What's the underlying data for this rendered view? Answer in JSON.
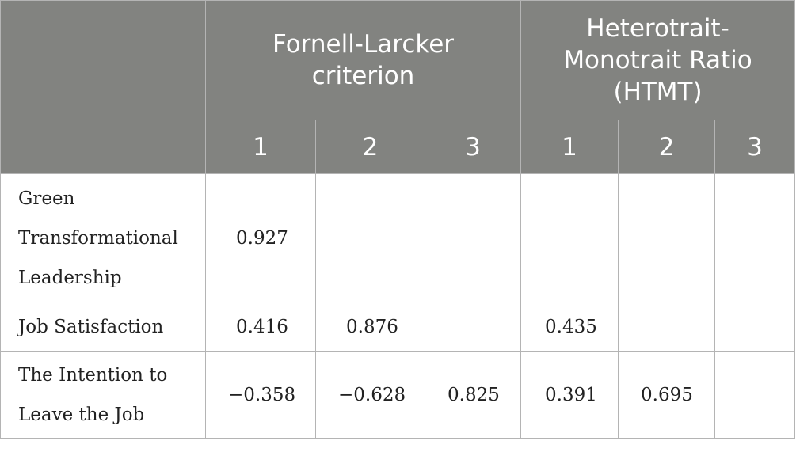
{
  "table": {
    "group_headers": [
      "",
      "Fornell-Larcker criterion",
      "Heterotrait-Monotrait Ratio (HTMT)"
    ],
    "sub_headers": [
      "",
      "1",
      "2",
      "3",
      "1",
      "2",
      "3"
    ],
    "rows": [
      {
        "label": "Green Transformational Leadership",
        "cells": [
          "0.927",
          "",
          "",
          "",
          "",
          ""
        ]
      },
      {
        "label": "Job Satisfaction",
        "cells": [
          "0.416",
          "0.876",
          "",
          "0.435",
          "",
          ""
        ]
      },
      {
        "label": "The Intention to Leave the Job",
        "cells": [
          "−0.358",
          "−0.628",
          "0.825",
          "0.391",
          "0.695",
          ""
        ]
      }
    ]
  }
}
